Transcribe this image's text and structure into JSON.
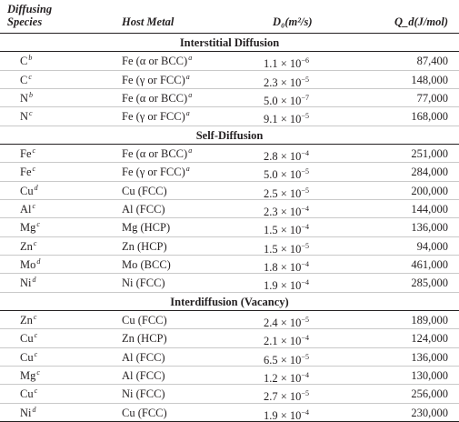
{
  "headers": {
    "species_line1": "Diffusing",
    "species_line2": "Species",
    "host": "Host Metal",
    "d0": "D₀(m²/s)",
    "q": "Q_d(J/mol)"
  },
  "sections": [
    {
      "title": "Interstitial Diffusion",
      "rows": [
        {
          "species": "C",
          "species_note": "b",
          "host": "Fe (α or BCC)",
          "host_note": "a",
          "d0": "1.1 × 10",
          "d0_exp": "−6",
          "q": "87,400"
        },
        {
          "species": "C",
          "species_note": "c",
          "host": "Fe (γ or FCC)",
          "host_note": "a",
          "d0": "2.3 × 10",
          "d0_exp": "−5",
          "q": "148,000"
        },
        {
          "species": "N",
          "species_note": "b",
          "host": "Fe (α or BCC)",
          "host_note": "a",
          "d0": "5.0 × 10",
          "d0_exp": "−7",
          "q": "77,000"
        },
        {
          "species": "N",
          "species_note": "c",
          "host": "Fe (γ or FCC)",
          "host_note": "a",
          "d0": "9.1 × 10",
          "d0_exp": "−5",
          "q": "168,000"
        }
      ]
    },
    {
      "title": "Self-Diffusion",
      "rows": [
        {
          "species": "Fe",
          "species_note": "c",
          "host": "Fe (α or BCC)",
          "host_note": "a",
          "d0": "2.8 × 10",
          "d0_exp": "−4",
          "q": "251,000"
        },
        {
          "species": "Fe",
          "species_note": "c",
          "host": "Fe (γ or FCC)",
          "host_note": "a",
          "d0": "5.0 × 10",
          "d0_exp": "−5",
          "q": "284,000"
        },
        {
          "species": "Cu",
          "species_note": "d",
          "host": "Cu (FCC)",
          "host_note": "",
          "d0": "2.5 × 10",
          "d0_exp": "−5",
          "q": "200,000"
        },
        {
          "species": "Al",
          "species_note": "c",
          "host": "Al (FCC)",
          "host_note": "",
          "d0": "2.3 × 10",
          "d0_exp": "−4",
          "q": "144,000"
        },
        {
          "species": "Mg",
          "species_note": "c",
          "host": "Mg (HCP)",
          "host_note": "",
          "d0": "1.5 × 10",
          "d0_exp": "−4",
          "q": "136,000"
        },
        {
          "species": "Zn",
          "species_note": "c",
          "host": "Zn (HCP)",
          "host_note": "",
          "d0": "1.5 × 10",
          "d0_exp": "−5",
          "q": "94,000"
        },
        {
          "species": "Mo",
          "species_note": "d",
          "host": "Mo (BCC)",
          "host_note": "",
          "d0": "1.8 × 10",
          "d0_exp": "−4",
          "q": "461,000"
        },
        {
          "species": "Ni",
          "species_note": "d",
          "host": "Ni (FCC)",
          "host_note": "",
          "d0": "1.9 × 10",
          "d0_exp": "−4",
          "q": "285,000"
        }
      ]
    },
    {
      "title": "Interdiffusion (Vacancy)",
      "rows": [
        {
          "species": "Zn",
          "species_note": "c",
          "host": "Cu (FCC)",
          "host_note": "",
          "d0": "2.4 × 10",
          "d0_exp": "−5",
          "q": "189,000"
        },
        {
          "species": "Cu",
          "species_note": "c",
          "host": "Zn (HCP)",
          "host_note": "",
          "d0": "2.1 × 10",
          "d0_exp": "−4",
          "q": "124,000"
        },
        {
          "species": "Cu",
          "species_note": "c",
          "host": "Al (FCC)",
          "host_note": "",
          "d0": "6.5 × 10",
          "d0_exp": "−5",
          "q": "136,000"
        },
        {
          "species": "Mg",
          "species_note": "c",
          "host": "Al (FCC)",
          "host_note": "",
          "d0": "1.2 × 10",
          "d0_exp": "−4",
          "q": "130,000"
        },
        {
          "species": "Cu",
          "species_note": "c",
          "host": "Ni (FCC)",
          "host_note": "",
          "d0": "2.7 × 10",
          "d0_exp": "−5",
          "q": "256,000"
        },
        {
          "species": "Ni",
          "species_note": "d",
          "host": "Cu (FCC)",
          "host_note": "",
          "d0": "1.9 × 10",
          "d0_exp": "−4",
          "q": "230,000"
        }
      ]
    }
  ]
}
